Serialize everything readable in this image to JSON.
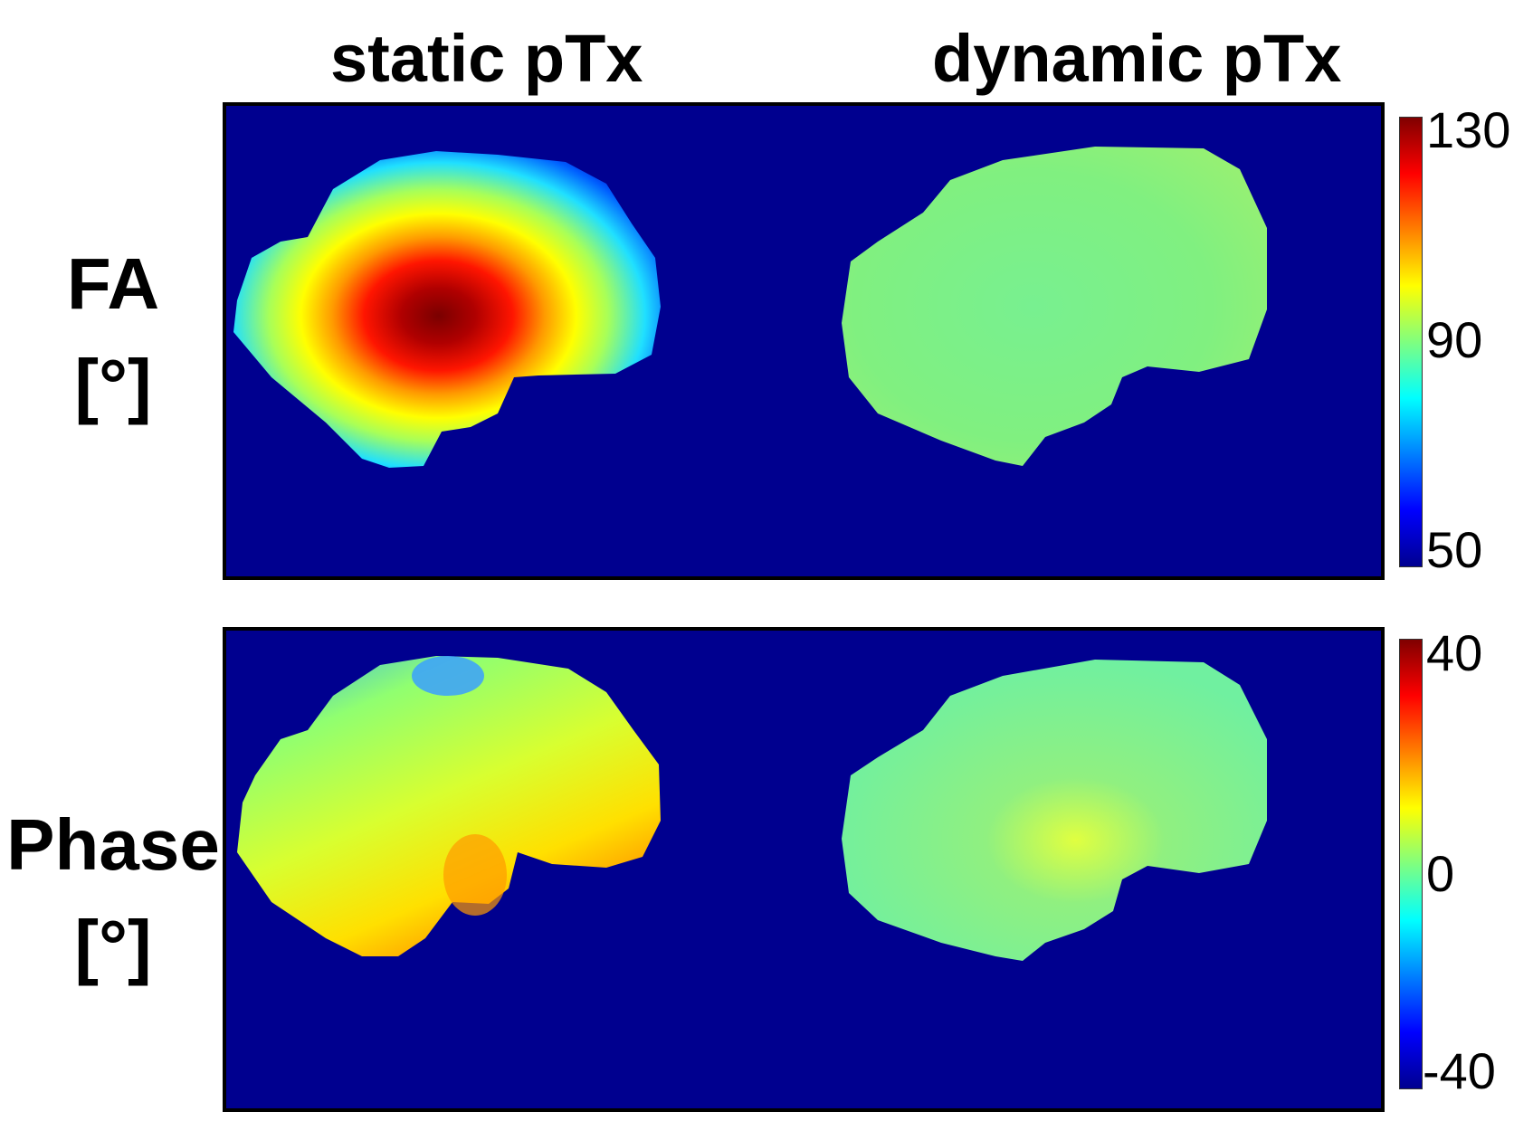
{
  "columns": {
    "static": "static pTx",
    "dynamic": "dynamic pTx"
  },
  "rows": {
    "fa": {
      "name": "FA",
      "unit": "[°]"
    },
    "phase": {
      "name": "Phase",
      "unit": "[°]"
    }
  },
  "colorbars": {
    "fa": {
      "max": "130",
      "mid": "90",
      "min": "50"
    },
    "phase": {
      "max": "40",
      "mid": "0",
      "min": "-40"
    }
  },
  "colors": {
    "background": "#00008f",
    "jet_low": "#00008f",
    "jet_high": "#800000"
  }
}
